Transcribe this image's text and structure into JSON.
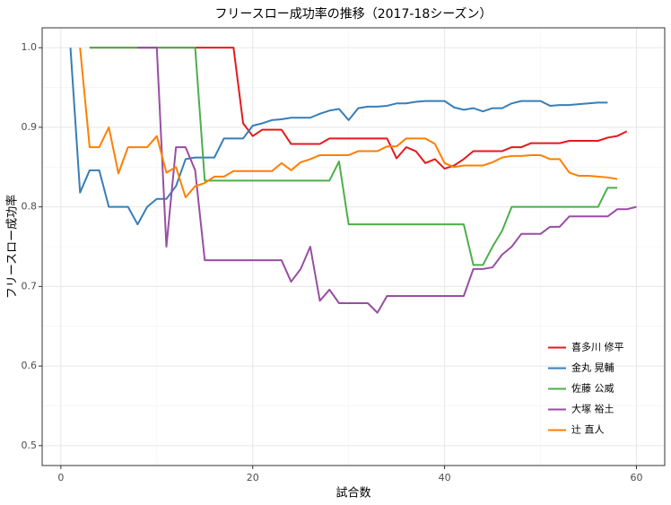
{
  "chart_data": {
    "type": "line",
    "title": "フリースロー成功率の推移（2017-18シーズン）",
    "x_label": "試合数",
    "y_label": "フリースロー成功率",
    "x": [
      1,
      2,
      3,
      4,
      5,
      6,
      7,
      8,
      9,
      10,
      11,
      12,
      13,
      14,
      15,
      16,
      17,
      18,
      19,
      20,
      21,
      22,
      23,
      24,
      25,
      26,
      27,
      28,
      29,
      30,
      31,
      32,
      33,
      34,
      35,
      36,
      37,
      38,
      39,
      40,
      41,
      42,
      43,
      44,
      45,
      46,
      47,
      48,
      49,
      50,
      51,
      52,
      53,
      54,
      55,
      56,
      57,
      58,
      59,
      60
    ],
    "xlim": [
      -1.95,
      62.95
    ],
    "xticks": [
      0,
      20,
      40,
      60
    ],
    "ylim": [
      0.475,
      1.025
    ],
    "yticks": [
      0.5,
      0.6,
      0.7,
      0.8,
      0.9,
      {
        "value": 1,
        "label": "1.0"
      }
    ],
    "grid": true,
    "legend": "bottom-right",
    "series": [
      {
        "name": "喜多川 修平",
        "color": "#e41a1c",
        "values": [
          null,
          null,
          1,
          1,
          1,
          1,
          1,
          1,
          1,
          1,
          1,
          1,
          1,
          1,
          1,
          1,
          1,
          1,
          0.905,
          0.889,
          0.897,
          0.897,
          0.897,
          0.879,
          0.879,
          0.879,
          0.879,
          0.886,
          0.886,
          0.886,
          0.886,
          0.886,
          0.886,
          0.886,
          0.861,
          0.875,
          0.87,
          0.855,
          0.86,
          0.848,
          0.852,
          0.86,
          0.87,
          0.87,
          0.87,
          0.87,
          0.875,
          0.875,
          0.88,
          0.88,
          0.88,
          0.88,
          0.883,
          0.883,
          0.883,
          0.883,
          0.887,
          0.889,
          0.895,
          null
        ]
      },
      {
        "name": "金丸 晃輔",
        "color": "#377eb8",
        "values": [
          1,
          0.818,
          0.846,
          0.846,
          0.8,
          0.8,
          0.8,
          0.778,
          0.8,
          0.81,
          0.81,
          0.826,
          0.86,
          0.862,
          0.862,
          0.862,
          0.886,
          0.886,
          0.886,
          0.902,
          0.905,
          0.909,
          0.91,
          0.912,
          0.912,
          0.912,
          0.917,
          0.921,
          0.923,
          0.909,
          0.924,
          0.926,
          0.926,
          0.927,
          0.93,
          0.93,
          0.932,
          0.933,
          0.933,
          0.933,
          0.925,
          0.922,
          0.924,
          0.92,
          0.924,
          0.924,
          0.93,
          0.933,
          0.933,
          0.933,
          0.927,
          0.928,
          0.928,
          0.929,
          0.93,
          0.931,
          0.931,
          null,
          null,
          null
        ]
      },
      {
        "name": "佐藤 公威",
        "color": "#4daf4a",
        "values": [
          null,
          null,
          1,
          1,
          1,
          1,
          1,
          1,
          1,
          1,
          1,
          1,
          1,
          1,
          0.833,
          0.833,
          0.833,
          0.833,
          0.833,
          0.833,
          0.833,
          0.833,
          0.833,
          0.833,
          0.833,
          0.833,
          0.833,
          0.833,
          0.857,
          0.778,
          0.778,
          0.778,
          0.778,
          0.778,
          0.778,
          0.778,
          0.778,
          0.778,
          0.778,
          0.778,
          0.778,
          0.778,
          0.727,
          0.727,
          0.75,
          0.77,
          0.8,
          0.8,
          0.8,
          0.8,
          0.8,
          0.8,
          0.8,
          0.8,
          0.8,
          0.8,
          0.824,
          0.824,
          null,
          null
        ]
      },
      {
        "name": "大塚 裕土",
        "color": "#984ea3",
        "values": [
          null,
          null,
          null,
          null,
          null,
          null,
          null,
          1,
          1,
          1,
          0.75,
          0.875,
          0.875,
          0.846,
          0.733,
          0.733,
          0.733,
          0.733,
          0.733,
          0.733,
          0.733,
          0.733,
          0.733,
          0.706,
          0.722,
          0.75,
          0.682,
          0.696,
          0.679,
          0.679,
          0.679,
          0.679,
          0.667,
          0.688,
          0.688,
          0.688,
          0.688,
          0.688,
          0.688,
          0.688,
          0.688,
          0.688,
          0.722,
          0.722,
          0.724,
          0.74,
          0.75,
          0.766,
          0.766,
          0.766,
          0.775,
          0.775,
          0.788,
          0.788,
          0.788,
          0.788,
          0.788,
          0.797,
          0.797,
          0.8
        ]
      },
      {
        "name": "辻 直人",
        "color": "#ff7f00",
        "values": [
          null,
          1,
          0.875,
          0.875,
          0.9,
          0.842,
          0.875,
          0.875,
          0.875,
          0.889,
          0.843,
          0.85,
          0.812,
          0.826,
          0.83,
          0.838,
          0.838,
          0.845,
          0.845,
          0.845,
          0.845,
          0.845,
          0.855,
          0.846,
          0.856,
          0.86,
          0.865,
          0.865,
          0.865,
          0.865,
          0.87,
          0.87,
          0.87,
          0.876,
          0.876,
          0.886,
          0.886,
          0.886,
          0.879,
          0.855,
          0.85,
          0.852,
          0.852,
          0.852,
          0.856,
          0.862,
          0.864,
          0.864,
          0.865,
          0.865,
          0.86,
          0.86,
          0.843,
          0.839,
          0.839,
          0.838,
          0.837,
          0.835,
          null,
          null
        ]
      }
    ]
  }
}
